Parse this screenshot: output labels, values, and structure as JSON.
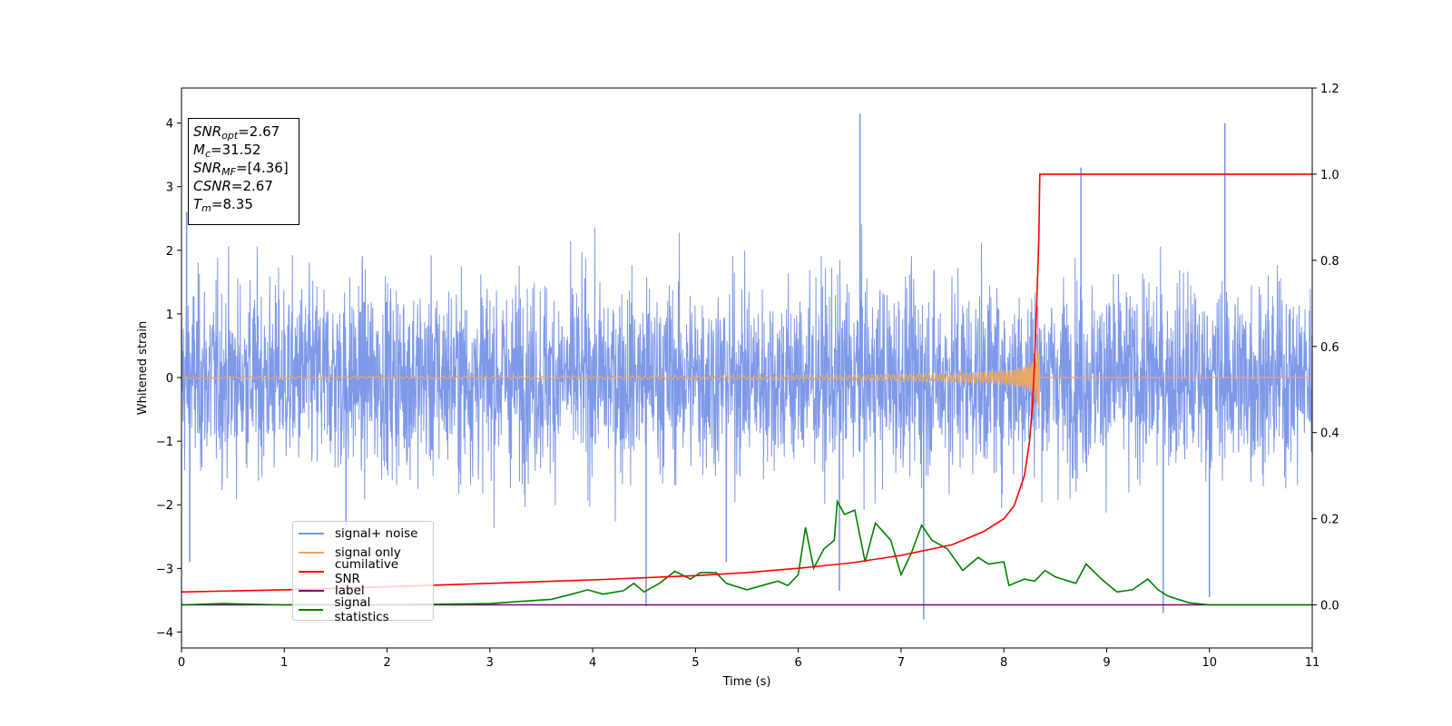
{
  "chart_data": {
    "type": "line",
    "xlabel": "Time (s)",
    "ylabel": "Whitened strain",
    "xlim": [
      0,
      11
    ],
    "ylim": [
      -4.25,
      4.55
    ],
    "y2lim": [
      -0.1,
      1.2
    ],
    "x_ticks": [
      "0",
      "1",
      "2",
      "3",
      "4",
      "5",
      "6",
      "7",
      "8",
      "9",
      "10",
      "11"
    ],
    "y_ticks": [
      "−4",
      "−3",
      "−2",
      "−1",
      "0",
      "1",
      "2",
      "3",
      "4"
    ],
    "y2_ticks": [
      "0.0",
      "0.2",
      "0.4",
      "0.6",
      "0.8",
      "1.0",
      "1.2"
    ],
    "colors": {
      "signal_noise": "#7894e8",
      "signal_only": "#e8a868",
      "cumulative_snr": "#ff0000",
      "label": "#800080",
      "signal_statistics": "#008000"
    },
    "annotations": {
      "snr_opt": {
        "base": "SNR",
        "sub": "opt",
        "value": "=2.67"
      },
      "mc": {
        "base": "M",
        "sub": "c",
        "value": "=31.52"
      },
      "snr_mf": {
        "base": "SNR",
        "sub": "MF",
        "value": "=[4.36]"
      },
      "csnr": {
        "base": "CSNR",
        "sub": "",
        "value": "=2.67"
      },
      "tm": {
        "base": "T",
        "sub": "m",
        "value": "=8.35"
      }
    },
    "series": [
      {
        "name": "signal+ noise",
        "axis": "left",
        "description_values": {
          "amplitude_std": 0.75,
          "peaks": [
            [
              0.05,
              2.6
            ],
            [
              0.08,
              -2.9
            ],
            [
              1.6,
              -2.5
            ],
            [
              4.52,
              -3.6
            ],
            [
              5.3,
              -2.9
            ],
            [
              6.4,
              -3.35
            ],
            [
              6.6,
              4.15
            ],
            [
              7.22,
              -3.8
            ],
            [
              8.75,
              3.3
            ],
            [
              9.55,
              -3.7
            ],
            [
              10.0,
              -3.45
            ],
            [
              10.15,
              4.0
            ]
          ]
        }
      },
      {
        "name": "signal only",
        "axis": "left",
        "chirp": {
          "t_merge": 8.35,
          "peak_amp": 0.6
        }
      },
      {
        "name": "cumilative SNR",
        "axis": "right",
        "points": [
          [
            0,
            0.03
          ],
          [
            1,
            0.035
          ],
          [
            2,
            0.042
          ],
          [
            3,
            0.05
          ],
          [
            4,
            0.058
          ],
          [
            5,
            0.068
          ],
          [
            5.5,
            0.075
          ],
          [
            6,
            0.085
          ],
          [
            6.5,
            0.097
          ],
          [
            7,
            0.115
          ],
          [
            7.5,
            0.14
          ],
          [
            7.8,
            0.17
          ],
          [
            8.0,
            0.2
          ],
          [
            8.1,
            0.23
          ],
          [
            8.2,
            0.3
          ],
          [
            8.25,
            0.38
          ],
          [
            8.28,
            0.47
          ],
          [
            8.3,
            0.57
          ],
          [
            8.32,
            0.7
          ],
          [
            8.34,
            0.85
          ],
          [
            8.35,
            1.0
          ],
          [
            11,
            1.0
          ]
        ]
      },
      {
        "name": "label",
        "axis": "right",
        "points": [
          [
            0,
            0.0
          ],
          [
            11,
            0.0
          ]
        ]
      },
      {
        "name": "signal statistics",
        "axis": "right",
        "points": [
          [
            0,
            0.0
          ],
          [
            0.4,
            0.003
          ],
          [
            1,
            0.0
          ],
          [
            2,
            0.0
          ],
          [
            3,
            0.003
          ],
          [
            3.3,
            0.008
          ],
          [
            3.6,
            0.013
          ],
          [
            3.8,
            0.025
          ],
          [
            3.95,
            0.035
          ],
          [
            4.1,
            0.025
          ],
          [
            4.3,
            0.033
          ],
          [
            4.4,
            0.05
          ],
          [
            4.5,
            0.03
          ],
          [
            4.65,
            0.05
          ],
          [
            4.8,
            0.078
          ],
          [
            4.95,
            0.06
          ],
          [
            5.05,
            0.075
          ],
          [
            5.2,
            0.075
          ],
          [
            5.3,
            0.05
          ],
          [
            5.5,
            0.035
          ],
          [
            5.65,
            0.045
          ],
          [
            5.8,
            0.055
          ],
          [
            5.9,
            0.045
          ],
          [
            6.0,
            0.07
          ],
          [
            6.07,
            0.18
          ],
          [
            6.15,
            0.085
          ],
          [
            6.25,
            0.13
          ],
          [
            6.35,
            0.15
          ],
          [
            6.38,
            0.24
          ],
          [
            6.45,
            0.21
          ],
          [
            6.55,
            0.22
          ],
          [
            6.6,
            0.16
          ],
          [
            6.65,
            0.1
          ],
          [
            6.75,
            0.19
          ],
          [
            6.9,
            0.15
          ],
          [
            7.0,
            0.07
          ],
          [
            7.1,
            0.12
          ],
          [
            7.2,
            0.185
          ],
          [
            7.3,
            0.15
          ],
          [
            7.45,
            0.13
          ],
          [
            7.6,
            0.08
          ],
          [
            7.75,
            0.11
          ],
          [
            7.85,
            0.095
          ],
          [
            8.0,
            0.1
          ],
          [
            8.05,
            0.045
          ],
          [
            8.2,
            0.06
          ],
          [
            8.3,
            0.055
          ],
          [
            8.4,
            0.08
          ],
          [
            8.5,
            0.065
          ],
          [
            8.7,
            0.05
          ],
          [
            8.8,
            0.095
          ],
          [
            8.95,
            0.06
          ],
          [
            9.1,
            0.03
          ],
          [
            9.25,
            0.035
          ],
          [
            9.4,
            0.06
          ],
          [
            9.5,
            0.035
          ],
          [
            9.6,
            0.02
          ],
          [
            9.8,
            0.005
          ],
          [
            10.0,
            0.0
          ],
          [
            11,
            0.0
          ]
        ]
      }
    ]
  }
}
